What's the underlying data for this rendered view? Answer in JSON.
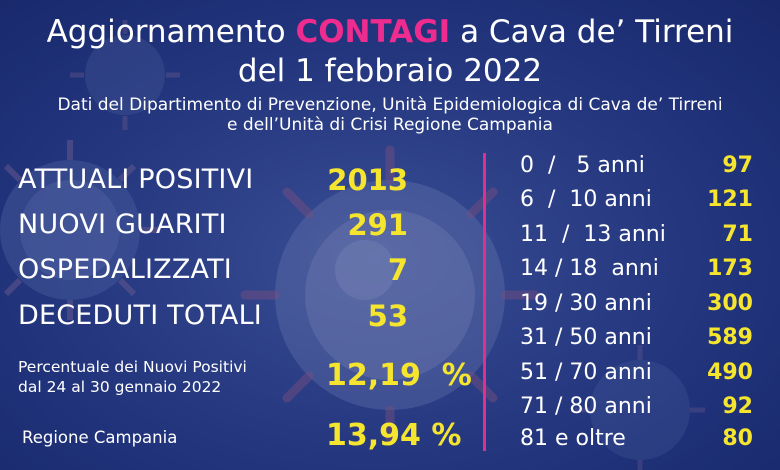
{
  "header": {
    "title_prefix": "Aggiornamento ",
    "title_highlight": "CONTAGI",
    "title_suffix": " a Cava de’ Tirreni",
    "date_line": "del 1 febbraio 2022",
    "source_line1": "Dati del Dipartimento di Prevenzione, Unità Epidemiologica di Cava de’ Tirreni",
    "source_line2": "e dell’Unità di Crisi Regione Campania"
  },
  "stats": [
    {
      "label": "ATTUALI POSITIVI",
      "value": "2013"
    },
    {
      "label": "NUOVI GUARITI",
      "value": "291"
    },
    {
      "label": "OSPEDALIZZATI",
      "value": "7"
    },
    {
      "label": "DECEDUTI TOTALI",
      "value": "53"
    }
  ],
  "percent_new": {
    "label_line1": "Percentuale dei Nuovi Positivi",
    "label_line2": "dal 24 al 30 gennaio 2022",
    "value": "12,19  %"
  },
  "percent_region": {
    "label": "Regione Campania",
    "value": "13,94 %"
  },
  "age_groups": [
    {
      "label": "0  /   5 anni",
      "value": "97"
    },
    {
      "label": "6  /  10 anni",
      "value": "121"
    },
    {
      "label": "11  /  13 anni",
      "value": "71"
    },
    {
      "label": "14 / 18  anni",
      "value": "173"
    },
    {
      "label": "19 / 30 anni",
      "value": "300"
    },
    {
      "label": "31 / 50 anni",
      "value": "589"
    },
    {
      "label": "51 / 70 anni",
      "value": "490"
    },
    {
      "label": "71 / 80 anni",
      "value": "92"
    },
    {
      "label": "81 e oltre",
      "value": "80"
    }
  ],
  "colors": {
    "background": "#24367e",
    "highlight_pink": "#ee2b8f",
    "value_yellow": "#f5e52f",
    "divider": "#e62c8c"
  }
}
